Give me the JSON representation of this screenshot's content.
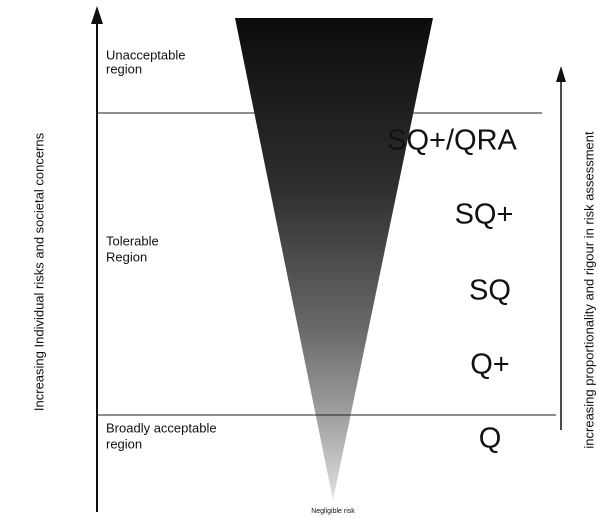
{
  "left_axis_label": "Increasing Individual risks and societal concerns",
  "right_axis_label": "increasing proportionality and rigour in risk assessment",
  "regions": [
    {
      "lines": [
        "Unacceptable",
        "region"
      ]
    },
    {
      "lines": [
        "Tolerable",
        "Region"
      ]
    },
    {
      "lines": [
        "Broadly acceptable",
        "region"
      ]
    }
  ],
  "assessment_levels": [
    "SQ+/QRA",
    "SQ+",
    "SQ",
    "Q+",
    "Q"
  ],
  "bottom_label": "Negligible risk"
}
